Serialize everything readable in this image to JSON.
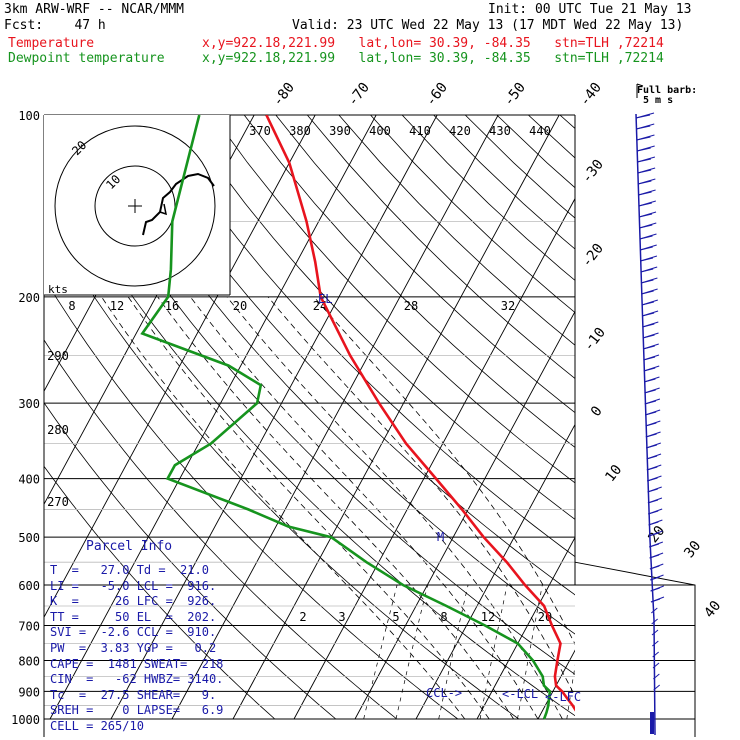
{
  "header": {
    "line1_left": "3km ARW-WRF -- NCAR/MMM",
    "line1_right": "Init: 00 UTC Tue 21 May 13",
    "line2_left": "Fcst:    47 h",
    "line2_right": "Valid: 23 UTC Wed 22 May 13 (17 MDT Wed 22 May 13)",
    "temp_label": "Temperature",
    "dew_label": "Dewpoint temperature",
    "temp_loc": "x,y=922.18,221.99   lat,lon= 30.39, -84.35   stn=TLH ,72214",
    "dew_loc": "x,y=922.18,221.99   lat,lon= 30.39, -84.35   stn=TLH ,72214",
    "temp_color": "#e8141e",
    "dew_color": "#16941e"
  },
  "chart_data": {
    "type": "line",
    "diagram": "skew-T log-p",
    "pressure_levels": [
      100,
      200,
      300,
      400,
      500,
      600,
      700,
      800,
      900,
      1000
    ],
    "pressure_lines_labeled": [
      100,
      200,
      300,
      400,
      500,
      600,
      700,
      800,
      900,
      1000
    ],
    "temperature_labels": [
      -80,
      -70,
      -60,
      -50,
      -40,
      -30,
      -20,
      -10,
      0,
      10,
      20,
      30,
      40
    ],
    "theta_labels": [
      370,
      380,
      390,
      400,
      410,
      420,
      430,
      440
    ],
    "mixing_ratio_top_labels": [
      8,
      12,
      16,
      20,
      24,
      28,
      32
    ],
    "mixing_ratio_bottom_labels": [
      2,
      3,
      5,
      8,
      12,
      20
    ],
    "thetae_labels": [
      290,
      280,
      270
    ],
    "series": [
      {
        "name": "Temperature",
        "color": "#e8141e",
        "p": [
          100,
          120,
          150,
          175,
          200,
          250,
          300,
          350,
          400,
          450,
          500,
          550,
          600,
          650,
          700,
          750,
          800,
          850,
          880,
          900,
          925,
          950,
          975,
          1000
        ],
        "t": [
          -78,
          -70,
          -62,
          -57,
          -53,
          -43,
          -34,
          -26,
          -18,
          -11,
          -5,
          1,
          6,
          11,
          14,
          17,
          18,
          19,
          20,
          21.5,
          23,
          24.5,
          25.8,
          27
        ]
      },
      {
        "name": "Dewpoint temperature",
        "color": "#16941e",
        "p": [
          100,
          150,
          180,
          200,
          230,
          260,
          280,
          300,
          350,
          380,
          400,
          450,
          480,
          500,
          550,
          600,
          650,
          700,
          750,
          800,
          850,
          880,
          900,
          925,
          950,
          975,
          1000
        ],
        "td": [
          -89,
          -84,
          -80,
          -78,
          -79,
          -62,
          -55,
          -54,
          -58,
          -62,
          -62,
          -46,
          -38,
          -30,
          -22,
          -14,
          -5,
          3,
          10,
          14,
          17,
          18,
          19.5,
          20,
          20.5,
          20.8,
          21
        ]
      }
    ],
    "markers": [
      {
        "label": "EL",
        "p": 202
      },
      {
        "label": "M",
        "p": 490
      },
      {
        "label": "CCL->",
        "p": 910
      },
      {
        "label": "<-LCL",
        "p": 916
      },
      {
        "label": "<-LFC",
        "p": 926
      }
    ],
    "hodograph": {
      "ring_labels": [
        "20",
        "10"
      ],
      "ring_units": "kts"
    },
    "wind_barb_legend": {
      "title": "Full barb:",
      "value": "5 m s"
    }
  },
  "parcel_info": {
    "title": "Parcel Info",
    "rows": [
      "T  =   27.0 Td =  21.0",
      "LI =   -5.0 LCL =  916.",
      "K  =     26 LFC =  926.",
      "TT =     50 EL  =  202.",
      "SVI =  -2.6 CCL =  910.",
      "PW  =  3.83 YGP =   0.2",
      "CAPE =  1481 SWEAT=  218",
      "CIN  =   -62 HWBZ= 3140.",
      "Tc  =  27.5 SHEAR=   9.",
      "SREH =    0 LAPSE=   6.9",
      "CELL = 265/10"
    ]
  }
}
